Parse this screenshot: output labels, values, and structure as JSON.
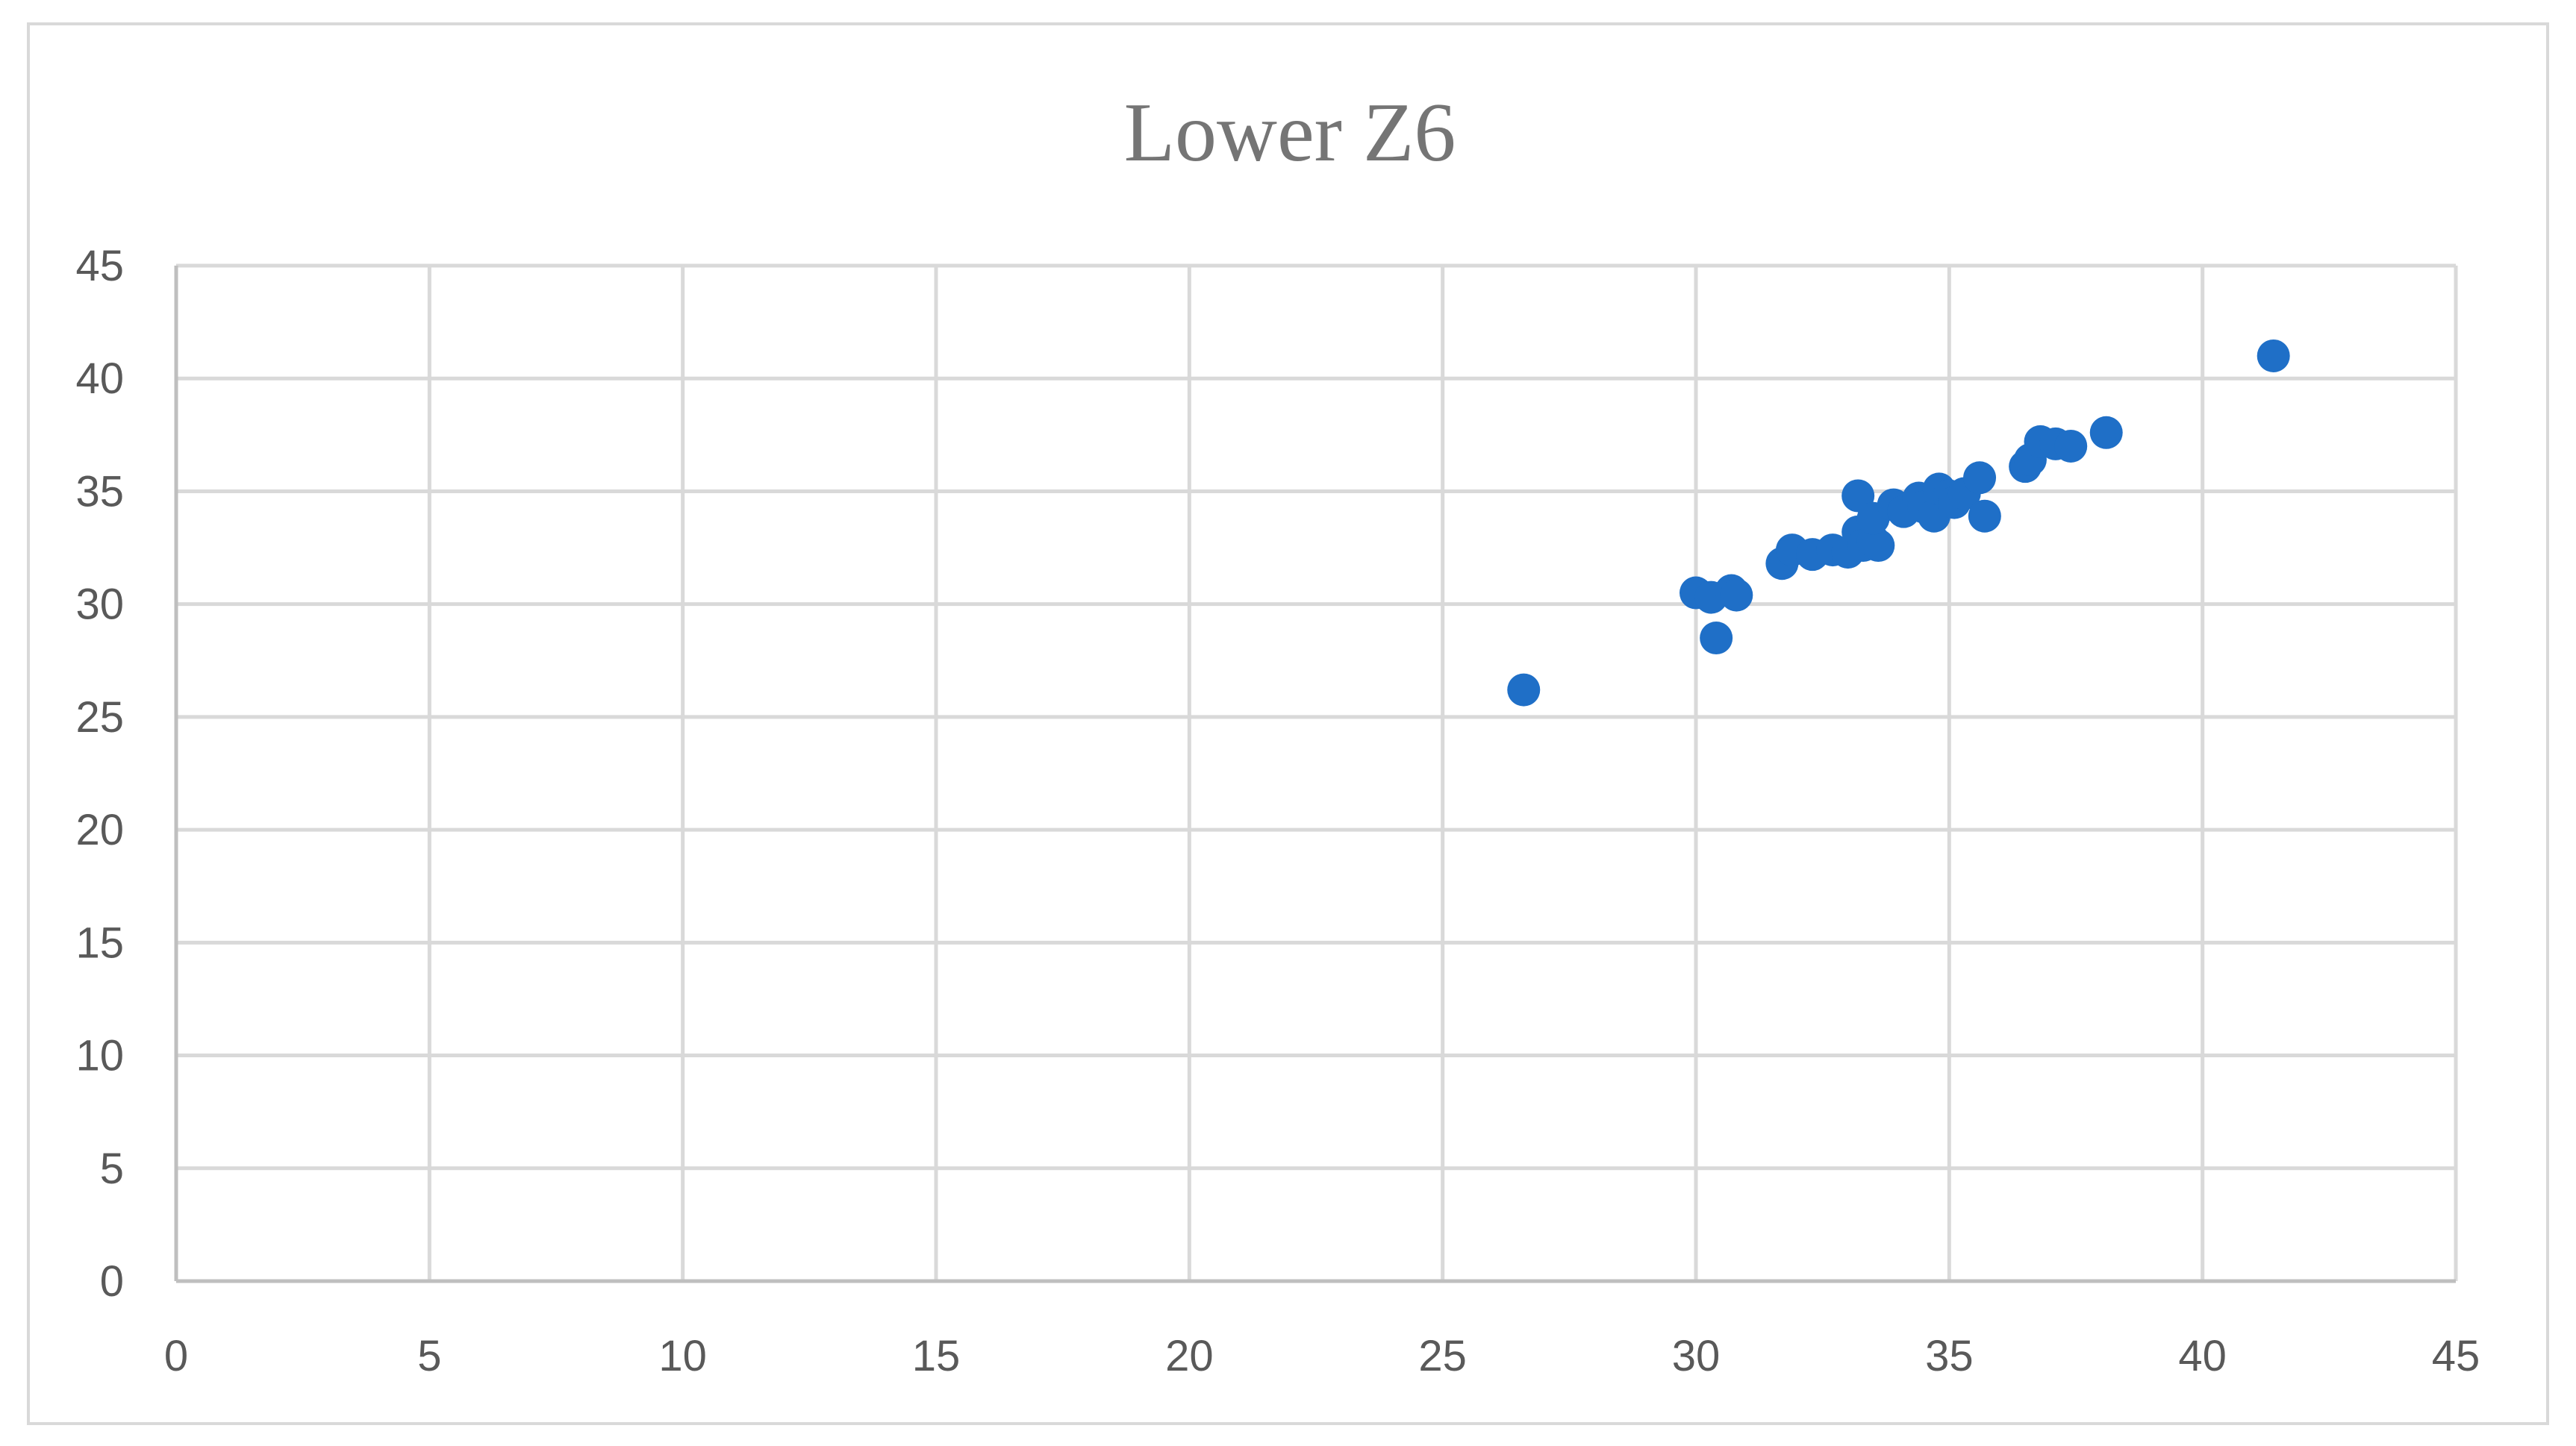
{
  "chart_data": {
    "type": "scatter",
    "title": "Lower Z6",
    "xlabel": "",
    "ylabel": "",
    "xlim": [
      0,
      45
    ],
    "ylim": [
      0,
      45
    ],
    "x_ticks": [
      0,
      5,
      10,
      15,
      20,
      25,
      30,
      35,
      40,
      45
    ],
    "y_ticks": [
      0,
      5,
      10,
      15,
      20,
      25,
      30,
      35,
      40,
      45
    ],
    "grid": true,
    "legend": "none",
    "marker_color": "#1f6fc7",
    "series": [
      {
        "x": [
          26.6,
          30.0,
          30.3,
          30.7,
          30.8,
          30.4,
          31.7,
          31.9,
          32.3,
          32.7,
          33.0,
          33.2,
          33.3,
          33.5,
          33.6,
          33.2,
          33.5,
          33.9,
          34.1,
          34.4,
          34.5,
          34.7,
          34.8,
          35.0,
          35.1,
          35.3,
          35.6,
          35.7,
          36.5,
          36.6,
          36.8,
          37.1,
          37.4,
          38.1,
          41.4
        ],
        "y": [
          26.2,
          30.5,
          30.3,
          30.6,
          30.4,
          28.5,
          31.8,
          32.4,
          32.2,
          32.4,
          32.3,
          33.2,
          32.6,
          32.8,
          32.6,
          34.8,
          33.8,
          34.4,
          34.1,
          34.7,
          34.3,
          33.9,
          35.1,
          34.8,
          34.5,
          34.9,
          35.6,
          33.9,
          36.1,
          36.4,
          37.2,
          37.1,
          37.0,
          37.6,
          41.0
        ]
      }
    ]
  }
}
